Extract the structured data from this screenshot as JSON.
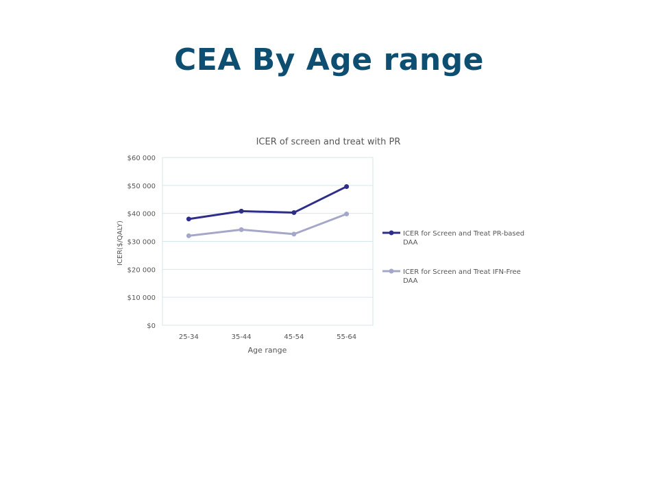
{
  "slide": {
    "title": "CEA By Age range"
  },
  "chart_data": {
    "type": "line",
    "title": "ICER of screen and treat with PR",
    "xlabel": "Age range",
    "ylabel": "ICER($/QALY)",
    "categories": [
      "25-34",
      "35-44",
      "45-54",
      "55-64"
    ],
    "ylim": [
      0,
      60000
    ],
    "yticks": [
      0,
      10000,
      20000,
      30000,
      40000,
      50000,
      60000
    ],
    "ytick_labels": [
      "$0",
      "$10 000",
      "$20 000",
      "$30 000",
      "$40 000",
      "$50 000",
      "$60 000"
    ],
    "grid": true,
    "legend_position": "right",
    "series": [
      {
        "name": "ICER for Screen and Treat PR-based DAA",
        "color": "#2e2d8a",
        "values": [
          38000,
          40800,
          40300,
          49600
        ]
      },
      {
        "name": "ICER for Screen and Treat IFN-Free DAA",
        "color": "#a5a7c8",
        "values": [
          32000,
          34200,
          32600,
          39800
        ]
      }
    ]
  }
}
